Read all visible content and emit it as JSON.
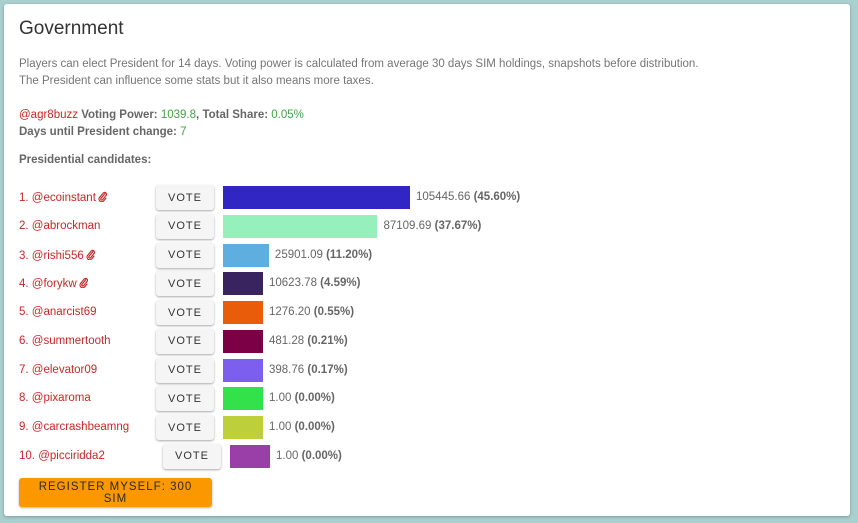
{
  "title": "Government",
  "description": [
    "Players can elect President for 14 days. Voting power is calculated from average 30 days SIM holdings, snapshots before distribution.",
    "The President can influence some stats but it also means more taxes."
  ],
  "info": {
    "username": "@agr8buzz",
    "voting_power_label": "Voting Power:",
    "voting_power": "1039.8",
    "total_share_label": "Total Share:",
    "total_share": "0.05%",
    "days_label": "Days until President change:",
    "days": "7"
  },
  "candidates_heading": "Presidential candidates:",
  "vote_label": "VOTE",
  "register_label": "REGISTER MYSELF: 300 SIM",
  "candidates": [
    {
      "rank": "1.",
      "name": "@ecoinstant",
      "icon": "paperclip-icon",
      "value": "105445.66",
      "percent": "(45.60%)",
      "share": 45.6,
      "color": "#3125c4"
    },
    {
      "rank": "2.",
      "name": "@abrockman",
      "icon": "",
      "value": "87109.69",
      "percent": "(37.67%)",
      "share": 37.67,
      "color": "#96f0bb"
    },
    {
      "rank": "3.",
      "name": "@rishi556",
      "icon": "paperclip-icon",
      "value": "25901.09",
      "percent": "(11.20%)",
      "share": 11.2,
      "color": "#5eaee0"
    },
    {
      "rank": "4.",
      "name": "@forykw",
      "icon": "paperclip-icon",
      "value": "10623.78",
      "percent": "(4.59%)",
      "share": 4.59,
      "color": "#3a2460"
    },
    {
      "rank": "5.",
      "name": "@anarcist69",
      "icon": "",
      "value": "1276.20",
      "percent": "(0.55%)",
      "share": 0.55,
      "color": "#e85c0a"
    },
    {
      "rank": "6.",
      "name": "@summertooth",
      "icon": "",
      "value": "481.28",
      "percent": "(0.21%)",
      "share": 0.21,
      "color": "#7b0045"
    },
    {
      "rank": "7.",
      "name": "@elevator09",
      "icon": "",
      "value": "398.76",
      "percent": "(0.17%)",
      "share": 0.17,
      "color": "#7d5ff0"
    },
    {
      "rank": "8.",
      "name": "@pixaroma",
      "icon": "",
      "value": "1.00",
      "percent": "(0.00%)",
      "share": 0.0,
      "color": "#33e24a"
    },
    {
      "rank": "9.",
      "name": "@carcrashbeamng",
      "icon": "",
      "value": "1.00",
      "percent": "(0.00%)",
      "share": 0.0,
      "color": "#bdd03c"
    },
    {
      "rank": "10.",
      "name": "@picciridda2",
      "icon": "",
      "value": "1.00",
      "percent": "(0.00%)",
      "share": 0.0,
      "color": "#9a3fa8"
    }
  ]
}
